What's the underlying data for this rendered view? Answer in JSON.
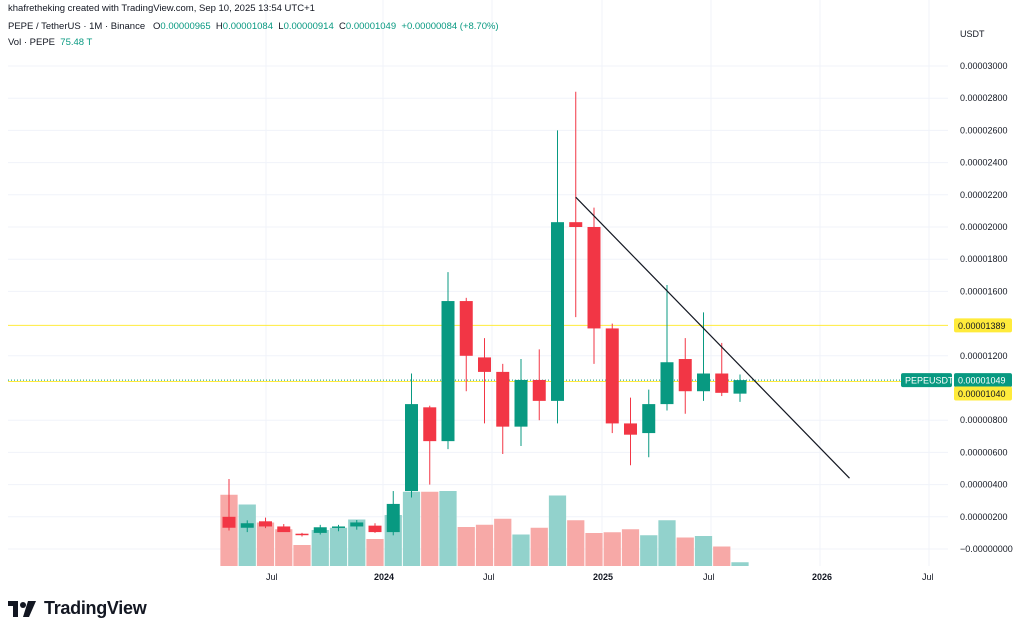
{
  "header": {
    "attribution": "khafretheking created with TradingView.com, Sep 10, 2025 13:54 UTC+1",
    "symbol": "PEPE / TetherUS · 1M · Binance",
    "o_label": "O",
    "o_value": "0.00000965",
    "h_label": "H",
    "h_value": "0.00001084",
    "l_label": "L",
    "l_value": "0.00000914",
    "c_label": "C",
    "c_value": "0.00001049",
    "change": "+0.00000084 (+8.70%)",
    "vol_label": "Vol · PEPE",
    "vol_value": "75.48 T"
  },
  "axis": {
    "currency": "USDT",
    "price_ticks": [
      "0.00003000",
      "0.00002800",
      "0.00002600",
      "0.00002400",
      "0.00002200",
      "0.00002000",
      "0.00001800",
      "0.00001600",
      "0.00001200",
      "0.00000800",
      "0.00000600",
      "0.00000400",
      "0.00000200",
      "−0.00000000"
    ],
    "time_ticks": [
      "Jul",
      "2024",
      "Jul",
      "2025",
      "Jul",
      "2026",
      "Jul"
    ]
  },
  "tags": {
    "yellow_high": "0.00001389",
    "ticker": "PEPEUSDT",
    "last_price": "0.00001049",
    "yellow_low": "0.00001040"
  },
  "brand": {
    "name": "TradingView"
  },
  "colors": {
    "up": "#089981",
    "down": "#f23645",
    "vol_up": "#92d2cc",
    "vol_down": "#f7a9a7",
    "hline": "#ffeb3b",
    "trend": "#131722",
    "grid": "#f0f3fa"
  },
  "chart_data": {
    "type": "candlestick",
    "interval": "1M",
    "ylim": [
      -1e-07,
      3.1e-06
    ],
    "candles": [
      {
        "x": "2023-06",
        "o": 2e-06,
        "h": 4.35e-06,
        "l": 1.15e-06,
        "c": 1.32e-06
      },
      {
        "x": "2023-07",
        "o": 1.32e-06,
        "h": 1.78e-06,
        "l": 1.05e-06,
        "c": 1.6e-06
      },
      {
        "x": "2023-08",
        "o": 1.72e-06,
        "h": 1.95e-06,
        "l": 1.3e-06,
        "c": 1.4e-06
      },
      {
        "x": "2023-09",
        "o": 1.4e-06,
        "h": 1.55e-06,
        "l": 1.08e-06,
        "c": 1.05e-06
      },
      {
        "x": "2023-10",
        "o": 9.5e-07,
        "h": 1e-06,
        "l": 7.8e-07,
        "c": 8.8e-07
      },
      {
        "x": "2023-11",
        "o": 1e-06,
        "h": 1.5e-06,
        "l": 9e-07,
        "c": 1.35e-06
      },
      {
        "x": "2023-12",
        "o": 1.35e-06,
        "h": 1.5e-06,
        "l": 1.1e-06,
        "c": 1.4e-06
      },
      {
        "x": "2024-01",
        "o": 1.4e-06,
        "h": 1.8e-06,
        "l": 1.2e-06,
        "c": 1.65e-06
      },
      {
        "x": "2024-02",
        "o": 1.45e-06,
        "h": 1.6e-06,
        "l": 1e-06,
        "c": 1.05e-06
      },
      {
        "x": "2024-03",
        "o": 1.05e-06,
        "h": 3.6e-06,
        "l": 8.5e-07,
        "c": 2.8e-06
      },
      {
        "x": "2024-04",
        "o": 3.6e-06,
        "h": 1.09e-05,
        "l": 3.2e-06,
        "c": 9e-06
      },
      {
        "x": "2024-05",
        "o": 8.8e-06,
        "h": 8.9e-06,
        "l": 4e-06,
        "c": 6.7e-06
      },
      {
        "x": "2024-06",
        "o": 6.7e-06,
        "h": 1.72e-05,
        "l": 6.2e-06,
        "c": 1.54e-05
      },
      {
        "x": "2024-07",
        "o": 1.54e-05,
        "h": 1.56e-05,
        "l": 9.8e-06,
        "c": 1.2e-05
      },
      {
        "x": "2024-08",
        "o": 1.19e-05,
        "h": 1.31e-05,
        "l": 7.8e-06,
        "c": 1.1e-05
      },
      {
        "x": "2024-09",
        "o": 1.1e-05,
        "h": 1.15e-05,
        "l": 5.9e-06,
        "c": 7.6e-06
      },
      {
        "x": "2024-10",
        "o": 7.6e-06,
        "h": 1.18e-05,
        "l": 6.4e-06,
        "c": 1.05e-05
      },
      {
        "x": "2024-11",
        "o": 1.05e-05,
        "h": 1.24e-05,
        "l": 8e-06,
        "c": 9.2e-06
      },
      {
        "x": "2024-12",
        "o": 9.2e-06,
        "h": 2.6e-05,
        "l": 7.8e-06,
        "c": 2.03e-05
      },
      {
        "x": "2025-01",
        "o": 2.03e-05,
        "h": 2.84e-05,
        "l": 1.44e-05,
        "c": 2e-05
      },
      {
        "x": "2025-02",
        "o": 2e-05,
        "h": 2.12e-05,
        "l": 1.15e-05,
        "c": 1.37e-05
      },
      {
        "x": "2025-03",
        "o": 1.37e-05,
        "h": 1.4e-05,
        "l": 7.2e-06,
        "c": 7.8e-06
      },
      {
        "x": "2025-04",
        "o": 7.8e-06,
        "h": 9.4e-06,
        "l": 5.2e-06,
        "c": 7.1e-06
      },
      {
        "x": "2025-05",
        "o": 7.2e-06,
        "h": 9.9e-06,
        "l": 5.7e-06,
        "c": 9e-06
      },
      {
        "x": "2025-06",
        "o": 9e-06,
        "h": 1.64e-05,
        "l": 8.6e-06,
        "c": 1.16e-05
      },
      {
        "x": "2025-07",
        "o": 1.18e-05,
        "h": 1.31e-05,
        "l": 8.4e-06,
        "c": 9.8e-06
      },
      {
        "x": "2025-08",
        "o": 9.8e-06,
        "h": 1.47e-05,
        "l": 9.2e-06,
        "c": 1.09e-05
      },
      {
        "x": "2025-09",
        "o": 1.09e-05,
        "h": 1.28e-05,
        "l": 9.5e-06,
        "c": 9.7e-06
      },
      {
        "x": "2025-10",
        "o": 9.65e-06,
        "h": 1.084e-05,
        "l": 9.14e-06,
        "c": 1.049e-05
      }
    ],
    "volume_relative": [
      0.95,
      0.82,
      0.58,
      0.49,
      0.28,
      0.48,
      0.51,
      0.62,
      0.36,
      0.68,
      0.99,
      0.99,
      1.0,
      0.52,
      0.55,
      0.63,
      0.42,
      0.51,
      0.94,
      0.61,
      0.44,
      0.45,
      0.49,
      0.41,
      0.61,
      0.38,
      0.4,
      0.26,
      0.05
    ],
    "horizontal_lines": [
      1.389e-05,
      1.04e-05
    ],
    "trendline": {
      "start": {
        "x": "2025-01",
        "y": 2.185e-05
      },
      "end": {
        "x": "2026-04",
        "y": 4.4e-06
      }
    }
  }
}
